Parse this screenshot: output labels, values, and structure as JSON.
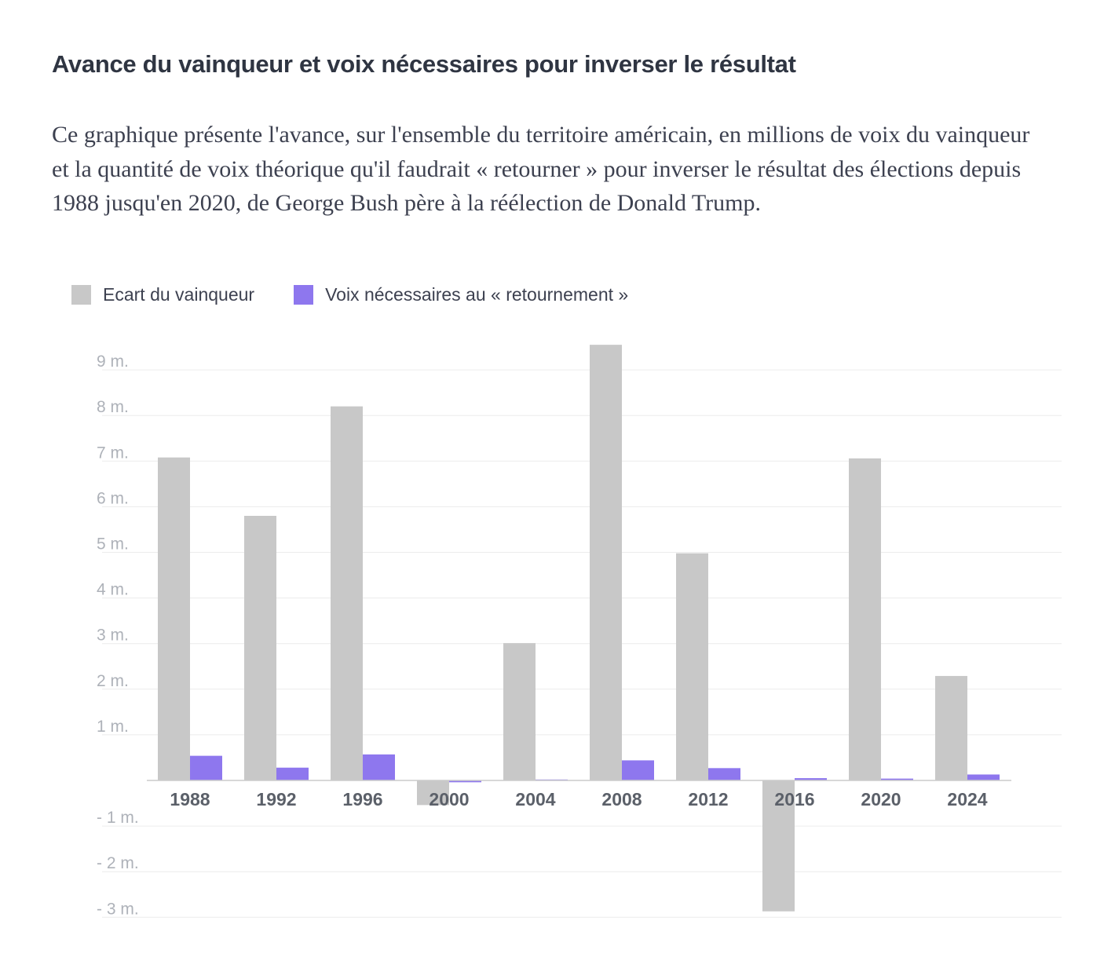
{
  "title": "Avance du vainqueur et voix nécessaires pour inverser le résultat",
  "subtitle": "Ce graphique présente l'avance, sur l'ensemble du territoire américain, en millions de voix du vainqueur et la quantité de voix théorique qu'il faudrait « retourner » pour inverser le résultat des élections depuis 1988 jusqu'en 2020, de George Bush père à la réélection de Donald Trump.",
  "colors": {
    "ecart": "#c8c8c8",
    "voix": "#8e77ee",
    "grid": "#ececec",
    "axis": "#cccccc"
  },
  "chart_data": {
    "type": "bar",
    "title": "Avance du vainqueur et voix nécessaires pour inverser le résultat",
    "xlabel": "",
    "ylabel": "",
    "ylim": [
      -3,
      9
    ],
    "categories": [
      "1988",
      "1992",
      "1996",
      "2000",
      "2004",
      "2008",
      "2012",
      "2016",
      "2020",
      "2024"
    ],
    "series": [
      {
        "name": "Ecart du vainqueur",
        "values": [
          7.08,
          5.8,
          8.2,
          -0.54,
          3.01,
          9.55,
          4.98,
          -2.87,
          7.06,
          2.29
        ]
      },
      {
        "name": "Voix nécessaires au « retournement »",
        "values": [
          0.54,
          0.28,
          0.57,
          -0.04,
          0.02,
          0.44,
          0.27,
          0.05,
          0.04,
          0.13
        ]
      }
    ],
    "yticks": [
      9,
      8,
      7,
      6,
      5,
      4,
      3,
      2,
      1,
      -1,
      -2,
      -3
    ],
    "ytick_labels": [
      "9 m.",
      "8 m.",
      "7 m.",
      "6 m.",
      "5 m.",
      "4 m.",
      "3 m.",
      "2 m.",
      "1 m.",
      "- 1 m.",
      "- 2 m.",
      "- 3 m."
    ],
    "legend": "top-left",
    "grid": true
  }
}
